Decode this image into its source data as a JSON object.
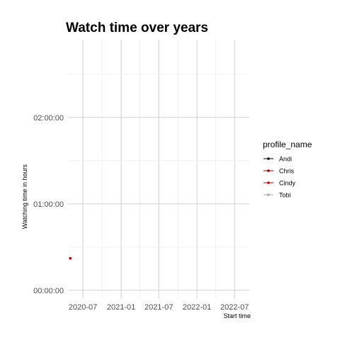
{
  "chart_data": {
    "type": "line",
    "title": "Watch time over years",
    "xlabel": "Start time",
    "ylabel": "Watching time in hours",
    "x_ticks": [
      "2020-07",
      "2021-01",
      "2021-07",
      "2022-01",
      "2022-07"
    ],
    "x_range": [
      "2020-04-20",
      "2022-09-10"
    ],
    "y_ticks": [
      "00:00:00",
      "01:00:00",
      "02:00:00"
    ],
    "y_ticks_hours": [
      0,
      1,
      2
    ],
    "ylim_hours": [
      -0.1,
      2.9
    ],
    "grid": true,
    "legend": {
      "title": "profile_name",
      "placement": "right",
      "entries": [
        {
          "name": "Andi",
          "color": "#000000"
        },
        {
          "name": "Chris",
          "color": "#8b0000"
        },
        {
          "name": "Cindy",
          "color": "#cd0000"
        },
        {
          "name": "Tobi",
          "color": "#a9a9a9"
        }
      ]
    },
    "series": [
      {
        "name": "Andi",
        "color": "#000000",
        "points": []
      },
      {
        "name": "Chris",
        "color": "#8b0000",
        "points": [
          {
            "x": "2020-05-01",
            "y": 0.37
          }
        ]
      },
      {
        "name": "Cindy",
        "color": "#cd0000",
        "points": [
          {
            "x": "2020-05-01",
            "y": 0.37
          }
        ]
      },
      {
        "name": "Tobi",
        "color": "#a9a9a9",
        "points": []
      }
    ]
  }
}
